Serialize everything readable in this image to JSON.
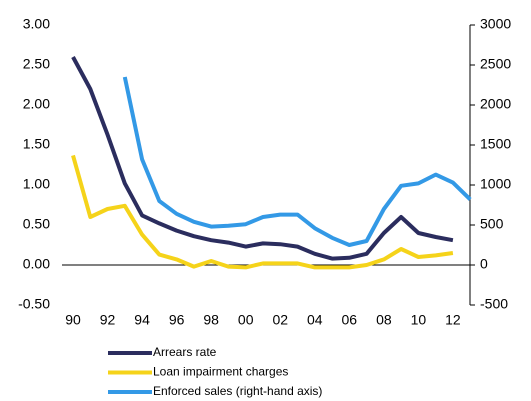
{
  "chart_data": {
    "type": "line",
    "categories": [
      "90",
      null,
      "92",
      null,
      "94",
      null,
      "96",
      null,
      "98",
      null,
      "00",
      null,
      "02",
      null,
      "04",
      null,
      "06",
      null,
      "08",
      null,
      "10",
      null,
      "12",
      null
    ],
    "series": [
      {
        "name": "Arrears rate",
        "color": "#2b2d5e",
        "values": [
          2.6,
          2.2,
          1.63,
          1.02,
          0.62,
          0.52,
          0.43,
          0.36,
          0.31,
          0.28,
          0.23,
          0.27,
          0.26,
          0.23,
          0.14,
          0.08,
          0.09,
          0.14,
          0.4,
          0.6,
          0.4,
          0.35,
          0.31,
          null
        ]
      },
      {
        "name": "Loan impairment charges",
        "color": "#f5d31a",
        "values": [
          1.37,
          0.6,
          0.7,
          0.74,
          0.38,
          0.13,
          0.07,
          -0.02,
          0.05,
          -0.02,
          -0.03,
          0.02,
          0.02,
          0.02,
          -0.03,
          -0.03,
          -0.03,
          0.0,
          0.07,
          0.2,
          0.1,
          0.12,
          0.15,
          null
        ]
      },
      {
        "name": "Enforced sales (right-hand axis)",
        "color": "#3399e6",
        "axis": "y2",
        "values": [
          null,
          null,
          null,
          2350,
          1320,
          800,
          640,
          540,
          480,
          490,
          510,
          600,
          630,
          630,
          460,
          340,
          250,
          300,
          700,
          990,
          1020,
          1130,
          1030,
          820
        ]
      }
    ],
    "ylim": [
      -0.5,
      3.0
    ],
    "yticks": [
      {
        "value": -0.5,
        "label": "-0.50"
      },
      {
        "value": 0,
        "label": "0.00"
      },
      {
        "value": 0.5,
        "label": "0.50"
      },
      {
        "value": 1.0,
        "label": "1.00"
      },
      {
        "value": 1.5,
        "label": "1.50"
      },
      {
        "value": 2.0,
        "label": "2.00"
      },
      {
        "value": 2.5,
        "label": "2.50"
      },
      {
        "value": 3.0,
        "label": "3.00"
      }
    ],
    "y2lim": [
      -500,
      3000
    ],
    "y2ticks": [
      -500,
      0,
      500,
      1000,
      1500,
      2000,
      2500,
      3000
    ],
    "legend": "bottom"
  }
}
